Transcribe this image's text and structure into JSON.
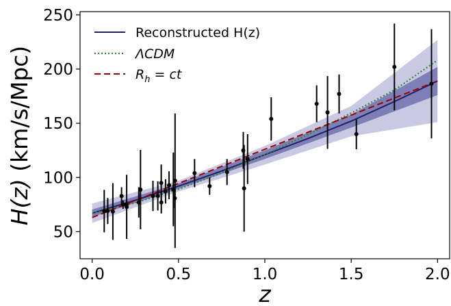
{
  "chart_data": {
    "type": "line",
    "xlabel": "z",
    "ylabel_var": "H(z)",
    "ylabel_unit": " (km/s/Mpc)",
    "xlim": [
      -0.07,
      2.07
    ],
    "ylim": [
      25,
      253
    ],
    "xticks": [
      0.0,
      0.5,
      1.0,
      1.5,
      2.0
    ],
    "xtick_labels": [
      "0.0",
      "0.5",
      "1.0",
      "1.5",
      "2.0"
    ],
    "yticks": [
      50,
      100,
      150,
      200,
      250
    ],
    "ytick_labels": [
      "50",
      "100",
      "150",
      "200",
      "250"
    ],
    "grid": false,
    "legend_position": "upper-left",
    "legend": [
      {
        "label": "Reconstructed H(z)",
        "style": "solid",
        "color": "#1f1f66"
      },
      {
        "label": "ΛCDM",
        "style": "dotted",
        "color": "#2e8b2e"
      },
      {
        "label": "R_h = ct",
        "label_parts": [
          "R",
          "h",
          " = ",
          "ct"
        ],
        "style": "dashed",
        "color": "#a00000"
      }
    ],
    "series": [
      {
        "name": "Reconstructed H(z)",
        "color": "#1f1f66",
        "x": [
          0,
          0.25,
          0.5,
          0.75,
          1.0,
          1.25,
          1.5,
          1.75,
          2.0
        ],
        "y": [
          67,
          79,
          92,
          106,
          121,
          136,
          152,
          170,
          189
        ]
      },
      {
        "name": "ΛCDM",
        "color": "#2e8b2e",
        "x": [
          0,
          0.25,
          0.5,
          0.75,
          1.0,
          1.25,
          1.5,
          1.75,
          2.0
        ],
        "y": [
          67,
          76.6,
          89.2,
          104.3,
          121.1,
          139.6,
          159.4,
          180.7,
          208.2
        ]
      },
      {
        "name": "R_h = ct",
        "color": "#a00000",
        "x": [
          0,
          2.0
        ],
        "y": [
          63,
          189
        ]
      }
    ],
    "band_1sigma": {
      "color": "#7e7fb6",
      "x": [
        0,
        0.5,
        1.0,
        1.5,
        2.0
      ],
      "y_low": [
        63.5,
        89.5,
        117,
        146,
        176
      ],
      "y_high": [
        70.5,
        94.5,
        125,
        158,
        202
      ]
    },
    "band_2sigma": {
      "color": "#c9c9e3",
      "x": [
        0,
        0.5,
        1.0,
        1.5,
        2.0
      ],
      "y_low": [
        58,
        87,
        112,
        138,
        151
      ],
      "y_high": [
        76,
        97,
        129,
        166,
        227
      ]
    },
    "data_points": [
      {
        "x": 0.07,
        "y": 69,
        "err": 19.6
      },
      {
        "x": 0.09,
        "y": 69,
        "err": 12
      },
      {
        "x": 0.12,
        "y": 68.6,
        "err": 26.2
      },
      {
        "x": 0.17,
        "y": 83,
        "err": 8
      },
      {
        "x": 0.179,
        "y": 75,
        "err": 4
      },
      {
        "x": 0.199,
        "y": 75,
        "err": 5
      },
      {
        "x": 0.2,
        "y": 72.9,
        "err": 29.6
      },
      {
        "x": 0.27,
        "y": 77,
        "err": 14
      },
      {
        "x": 0.28,
        "y": 88.8,
        "err": 36.6
      },
      {
        "x": 0.352,
        "y": 83,
        "err": 14
      },
      {
        "x": 0.38,
        "y": 83,
        "err": 13.5
      },
      {
        "x": 0.4,
        "y": 95,
        "err": 17
      },
      {
        "x": 0.4004,
        "y": 77,
        "err": 10.2
      },
      {
        "x": 0.425,
        "y": 87.1,
        "err": 11.2
      },
      {
        "x": 0.445,
        "y": 92.8,
        "err": 12.9
      },
      {
        "x": 0.47,
        "y": 89,
        "err": 34
      },
      {
        "x": 0.4783,
        "y": 80.9,
        "err": 9
      },
      {
        "x": 0.48,
        "y": 97,
        "err": 62
      },
      {
        "x": 0.593,
        "y": 104,
        "err": 13
      },
      {
        "x": 0.68,
        "y": 92,
        "err": 8
      },
      {
        "x": 0.781,
        "y": 105,
        "err": 12
      },
      {
        "x": 0.875,
        "y": 125,
        "err": 17
      },
      {
        "x": 0.88,
        "y": 90,
        "err": 40
      },
      {
        "x": 0.9,
        "y": 117,
        "err": 23
      },
      {
        "x": 1.037,
        "y": 154,
        "err": 20
      },
      {
        "x": 1.3,
        "y": 168,
        "err": 17
      },
      {
        "x": 1.363,
        "y": 160,
        "err": 33.6
      },
      {
        "x": 1.43,
        "y": 177,
        "err": 18
      },
      {
        "x": 1.53,
        "y": 140,
        "err": 14
      },
      {
        "x": 1.75,
        "y": 202,
        "err": 40
      },
      {
        "x": 1.965,
        "y": 186.5,
        "err": 50.4
      }
    ]
  }
}
